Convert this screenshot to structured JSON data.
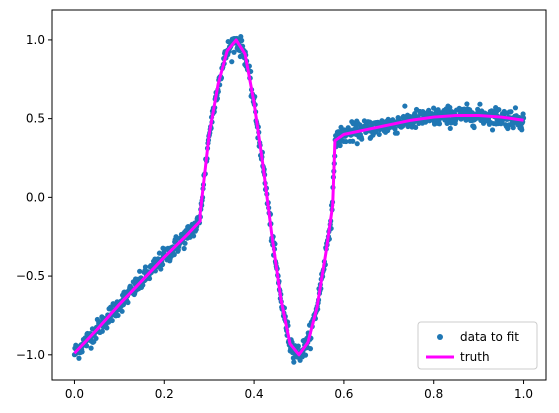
{
  "chart_data": {
    "type": "scatter",
    "title": "",
    "xlabel": "",
    "ylabel": "",
    "xlim": [
      -0.05,
      1.05
    ],
    "ylim": [
      -1.16,
      1.19
    ],
    "xticks": [
      0.0,
      0.2,
      0.4,
      0.6,
      0.8,
      1.0
    ],
    "xtick_labels": [
      "0.0",
      "0.2",
      "0.4",
      "0.6",
      "0.8",
      "1.0"
    ],
    "yticks": [
      -1.0,
      -0.5,
      0.0,
      0.5,
      1.0
    ],
    "ytick_labels": [
      "−1.0",
      "−0.5",
      "0.0",
      "0.5",
      "1.0"
    ],
    "grid": false,
    "legend_position": "lower-right",
    "series": [
      {
        "name": "data to fit",
        "kind": "scatter",
        "color": "#1f77b4",
        "noise_sd": 0.03,
        "n_points": 1000,
        "x_range": [
          0.0,
          1.0
        ]
      },
      {
        "name": "truth",
        "kind": "line",
        "color": "#ff00ff",
        "points": [
          [
            0.0,
            -0.99
          ],
          [
            0.05,
            -0.84
          ],
          [
            0.1,
            -0.68
          ],
          [
            0.15,
            -0.53
          ],
          [
            0.2,
            -0.38
          ],
          [
            0.25,
            -0.24
          ],
          [
            0.28,
            -0.15
          ],
          [
            0.28,
            -0.1
          ],
          [
            0.3,
            0.4
          ],
          [
            0.32,
            0.72
          ],
          [
            0.34,
            0.93
          ],
          [
            0.36,
            1.0
          ],
          [
            0.38,
            0.91
          ],
          [
            0.4,
            0.6
          ],
          [
            0.42,
            0.2
          ],
          [
            0.44,
            -0.25
          ],
          [
            0.46,
            -0.65
          ],
          [
            0.48,
            -0.93
          ],
          [
            0.5,
            -1.0
          ],
          [
            0.52,
            -0.92
          ],
          [
            0.54,
            -0.7
          ],
          [
            0.56,
            -0.35
          ],
          [
            0.575,
            -0.05
          ],
          [
            0.58,
            0.36
          ],
          [
            0.6,
            0.4
          ],
          [
            0.65,
            0.43
          ],
          [
            0.7,
            0.46
          ],
          [
            0.75,
            0.49
          ],
          [
            0.8,
            0.51
          ],
          [
            0.85,
            0.52
          ],
          [
            0.9,
            0.52
          ],
          [
            0.95,
            0.51
          ],
          [
            1.0,
            0.49
          ]
        ]
      }
    ]
  }
}
